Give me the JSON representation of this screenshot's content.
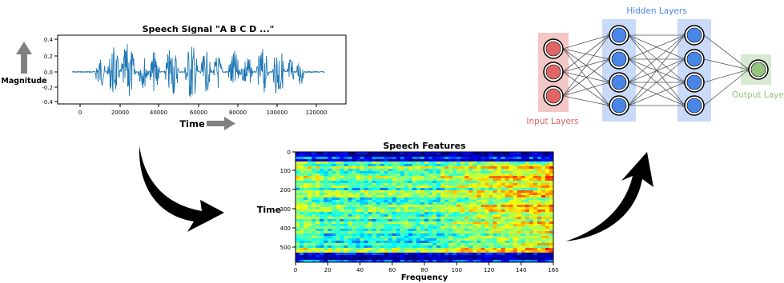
{
  "waveform": {
    "title": "Speech Signal  \"A B C D ...\"",
    "ylabel": "Magnitude",
    "xlabel": "Time",
    "y_ticks": [
      "0.4",
      "0.2",
      "0.0",
      "-0.2",
      "-0.4"
    ],
    "x_ticks": [
      "0",
      "20000",
      "40000",
      "60000",
      "80000",
      "100000",
      "120000"
    ],
    "line_color": "#1f77b4"
  },
  "spectrogram": {
    "title": "Speech Features",
    "ylabel": "Time",
    "xlabel": "Frequency",
    "y_ticks": [
      "0",
      "100",
      "200",
      "300",
      "400",
      "500"
    ],
    "x_ticks": [
      "0",
      "20",
      "40",
      "60",
      "80",
      "100",
      "120",
      "140",
      "160"
    ],
    "colormap": "jet"
  },
  "network": {
    "input_label": "Input Layers",
    "hidden_label": "Hidden Layers",
    "output_label": "Output Layers",
    "input_nodes": 3,
    "hidden_layers": 2,
    "hidden_nodes": 4,
    "output_nodes": 1,
    "colors": {
      "input_node": "#e06666",
      "input_bg": "#f4c7c7",
      "hidden_node": "#4a86e8",
      "hidden_bg": "#c9daf8",
      "output_node": "#93c47d",
      "output_bg": "#d9ead3",
      "input_text": "#e06666",
      "hidden_text": "#4a86e8",
      "output_text": "#93c47d"
    }
  }
}
